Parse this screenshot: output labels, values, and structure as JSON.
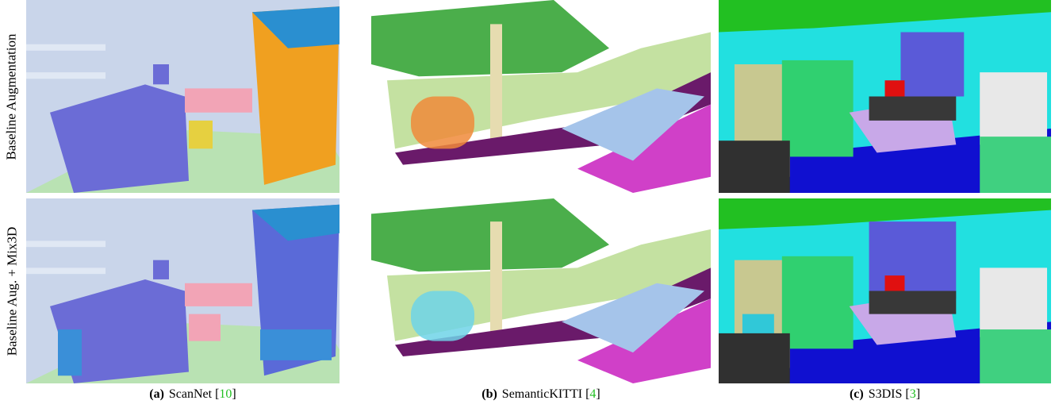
{
  "figure": {
    "row_labels": [
      "Baseline Augmentation",
      "Baseline Aug. + Mix3D"
    ],
    "captions": [
      {
        "label": "(a)",
        "name": "ScanNet",
        "open": "[",
        "cite": "10",
        "close": "]"
      },
      {
        "label": "(b)",
        "name": "SemanticKITTI",
        "open": "[",
        "cite": "4",
        "close": "]"
      },
      {
        "label": "(c)",
        "name": "S3DIS",
        "open": "[",
        "cite": "3",
        "close": "]"
      }
    ]
  }
}
